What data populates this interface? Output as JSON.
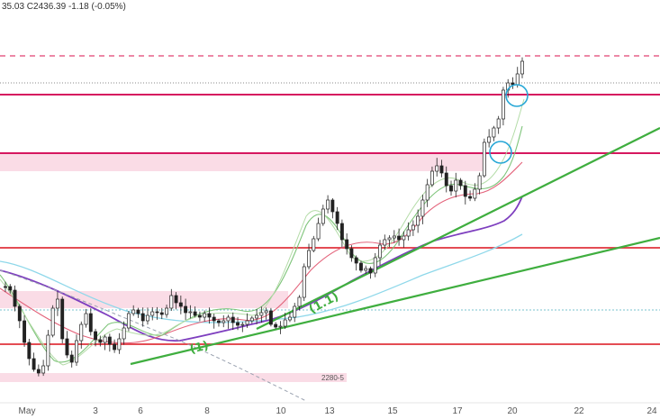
{
  "header": {
    "ohlc_text": "35.03  C2436.39  -1.18 (-0.05%)"
  },
  "colors": {
    "background": "#ffffff",
    "candle": "#222222",
    "resistance_line": "#d6175f",
    "support_line": "#e0323c",
    "zone_fill": "#f9d6e2",
    "trendline": "#3fae3f",
    "ma_purple": "#7e3fbf",
    "ma_cyan": "#8fd8ea",
    "ma_red": "#e3627a",
    "ma_green": "#7ec47a",
    "ma_light_green": "#b4dca8",
    "circle": "#27a7d6",
    "dashed_target": "#e04070",
    "dotted_price": "#888888",
    "dotted_teal": "#7ac3cf",
    "dashed_grey": "#9aa2b0"
  },
  "chart_data": {
    "type": "candlestick",
    "x_tick_labels": [
      "May",
      "3",
      "6",
      "8",
      "10",
      "13",
      "15",
      "17",
      "20",
      "22",
      "24"
    ],
    "annotations": {
      "wave_labels": [
        "(1)",
        "(1.1)"
      ],
      "zone_label": "2280-5"
    },
    "horizontal_levels": [
      {
        "kind": "dashed-target"
      },
      {
        "kind": "dotted-last-price"
      },
      {
        "kind": "resistance"
      },
      {
        "kind": "resistance-zone"
      },
      {
        "kind": "support"
      },
      {
        "kind": "support-zone"
      },
      {
        "kind": "support"
      },
      {
        "kind": "support-zone"
      }
    ],
    "candles_close_series": [
      318,
      322,
      340,
      356,
      380,
      398,
      410,
      414,
      406,
      372,
      342,
      332,
      376,
      394,
      402,
      378,
      360,
      348,
      368,
      377,
      380,
      374,
      382,
      388,
      376,
      364,
      348,
      344,
      348,
      356,
      350,
      346,
      347,
      349,
      342,
      328,
      336,
      340,
      347,
      346,
      350,
      352,
      348,
      352,
      356,
      358,
      356,
      352,
      358,
      361,
      360,
      356,
      353,
      350,
      347,
      345,
      360,
      363,
      362,
      355,
      352,
      340,
      330,
      296,
      278,
      265,
      248,
      232,
      222,
      235,
      248,
      266,
      276,
      286,
      292,
      300,
      298,
      303,
      286,
      272,
      266,
      264,
      262,
      266,
      262,
      255,
      250,
      240,
      222,
      205,
      190,
      184,
      192,
      206,
      212,
      200,
      206,
      218,
      220,
      210,
      195,
      158,
      152,
      142,
      132,
      100,
      92,
      94,
      82,
      68
    ]
  }
}
